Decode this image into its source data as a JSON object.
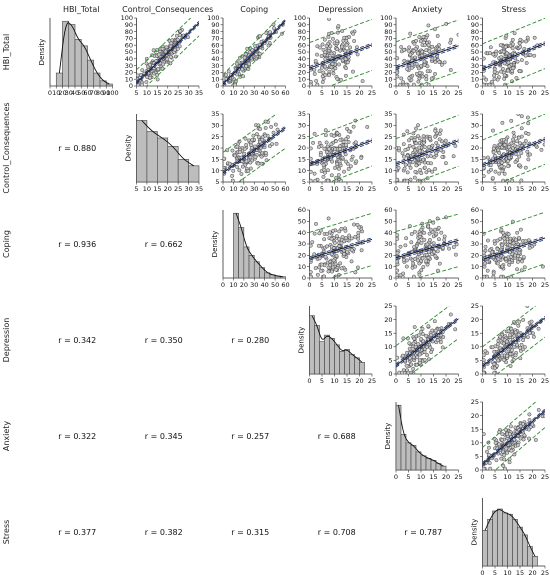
{
  "chart_data": {
    "type": "scatter_matrix",
    "variables": [
      "HBI_Total",
      "Control_Consequences",
      "Coping",
      "Depression",
      "Anxiety",
      "Stress"
    ],
    "diagonal_ylabel": "Density",
    "correlation_prefix": "r = ",
    "correlations": [
      {
        "row": "Control_Consequences",
        "col": "HBI_Total",
        "r": "0.880"
      },
      {
        "row": "Coping",
        "col": "HBI_Total",
        "r": "0.936"
      },
      {
        "row": "Coping",
        "col": "Control_Consequences",
        "r": "0.662"
      },
      {
        "row": "Depression",
        "col": "HBI_Total",
        "r": "0.342"
      },
      {
        "row": "Depression",
        "col": "Control_Consequences",
        "r": "0.350"
      },
      {
        "row": "Depression",
        "col": "Coping",
        "r": "0.280"
      },
      {
        "row": "Anxiety",
        "col": "HBI_Total",
        "r": "0.322"
      },
      {
        "row": "Anxiety",
        "col": "Control_Consequences",
        "r": "0.345"
      },
      {
        "row": "Anxiety",
        "col": "Coping",
        "r": "0.257"
      },
      {
        "row": "Anxiety",
        "col": "Depression",
        "r": "0.688"
      },
      {
        "row": "Stress",
        "col": "HBI_Total",
        "r": "0.377"
      },
      {
        "row": "Stress",
        "col": "Control_Consequences",
        "r": "0.382"
      },
      {
        "row": "Stress",
        "col": "Coping",
        "r": "0.315"
      },
      {
        "row": "Stress",
        "col": "Depression",
        "r": "0.708"
      },
      {
        "row": "Stress",
        "col": "Anxiety",
        "r": "0.787"
      }
    ],
    "axes": {
      "HBI_Total": {
        "range": [
          0,
          100
        ],
        "ticks": [
          0,
          10,
          20,
          30,
          40,
          50,
          60,
          70,
          80,
          90,
          100
        ]
      },
      "Control_Consequences": {
        "range": [
          5,
          35
        ],
        "ticks": [
          5,
          10,
          15,
          20,
          25,
          30,
          35
        ]
      },
      "Coping": {
        "range": [
          0,
          60
        ],
        "ticks": [
          0,
          10,
          20,
          30,
          40,
          50,
          60
        ]
      },
      "Depression": {
        "range": [
          0,
          25
        ],
        "ticks": [
          0,
          5,
          10,
          15,
          20,
          25
        ]
      },
      "Anxiety": {
        "range": [
          0,
          25
        ],
        "ticks": [
          0,
          5,
          10,
          15,
          20,
          25
        ]
      },
      "Stress": {
        "range": [
          0,
          25
        ],
        "ticks": [
          0,
          5,
          10,
          15,
          20,
          25
        ]
      }
    },
    "histograms": {
      "HBI_Total": {
        "bin_edges": [
          10,
          20,
          30,
          40,
          50,
          60,
          70,
          80,
          90,
          100
        ],
        "heights": [
          0.2,
          1.0,
          0.95,
          0.72,
          0.62,
          0.4,
          0.2,
          0.08,
          0.03
        ]
      },
      "Control_Consequences": {
        "bin_edges": [
          5,
          10,
          15,
          20,
          25,
          30,
          35
        ],
        "heights": [
          0.95,
          0.78,
          0.68,
          0.55,
          0.35,
          0.25
        ]
      },
      "Coping": {
        "bin_edges": [
          10,
          15,
          20,
          25,
          30,
          35,
          40,
          45,
          50,
          55,
          60
        ],
        "heights": [
          1.0,
          0.78,
          0.48,
          0.35,
          0.25,
          0.16,
          0.08,
          0.05,
          0.03,
          0.02
        ]
      },
      "Depression": {
        "bin_edges": [
          0,
          2,
          4,
          6,
          8,
          10,
          12,
          14,
          16,
          18,
          20,
          22
        ],
        "heights": [
          0.9,
          0.75,
          0.5,
          0.6,
          0.55,
          0.45,
          0.35,
          0.38,
          0.3,
          0.25,
          0.18
        ]
      },
      "Anxiety": {
        "bin_edges": [
          0,
          2,
          4,
          6,
          8,
          10,
          12,
          14,
          16,
          18,
          20
        ],
        "heights": [
          1.0,
          0.55,
          0.42,
          0.38,
          0.28,
          0.22,
          0.18,
          0.15,
          0.1,
          0.06
        ]
      },
      "Stress": {
        "bin_edges": [
          0,
          2,
          4,
          6,
          8,
          10,
          12,
          14,
          16,
          18,
          20,
          22
        ],
        "heights": [
          0.55,
          0.72,
          0.85,
          0.88,
          0.82,
          0.8,
          0.72,
          0.6,
          0.48,
          0.3,
          0.15
        ]
      }
    },
    "colors": {
      "points_fill": "#c8c8c8",
      "points_stroke": "#333333",
      "regression_line": "#1a1a1a",
      "confidence_band": "#1f3a8a",
      "prediction_band": "#2e8b2e",
      "histogram_fill": "#bdbdbd"
    }
  }
}
